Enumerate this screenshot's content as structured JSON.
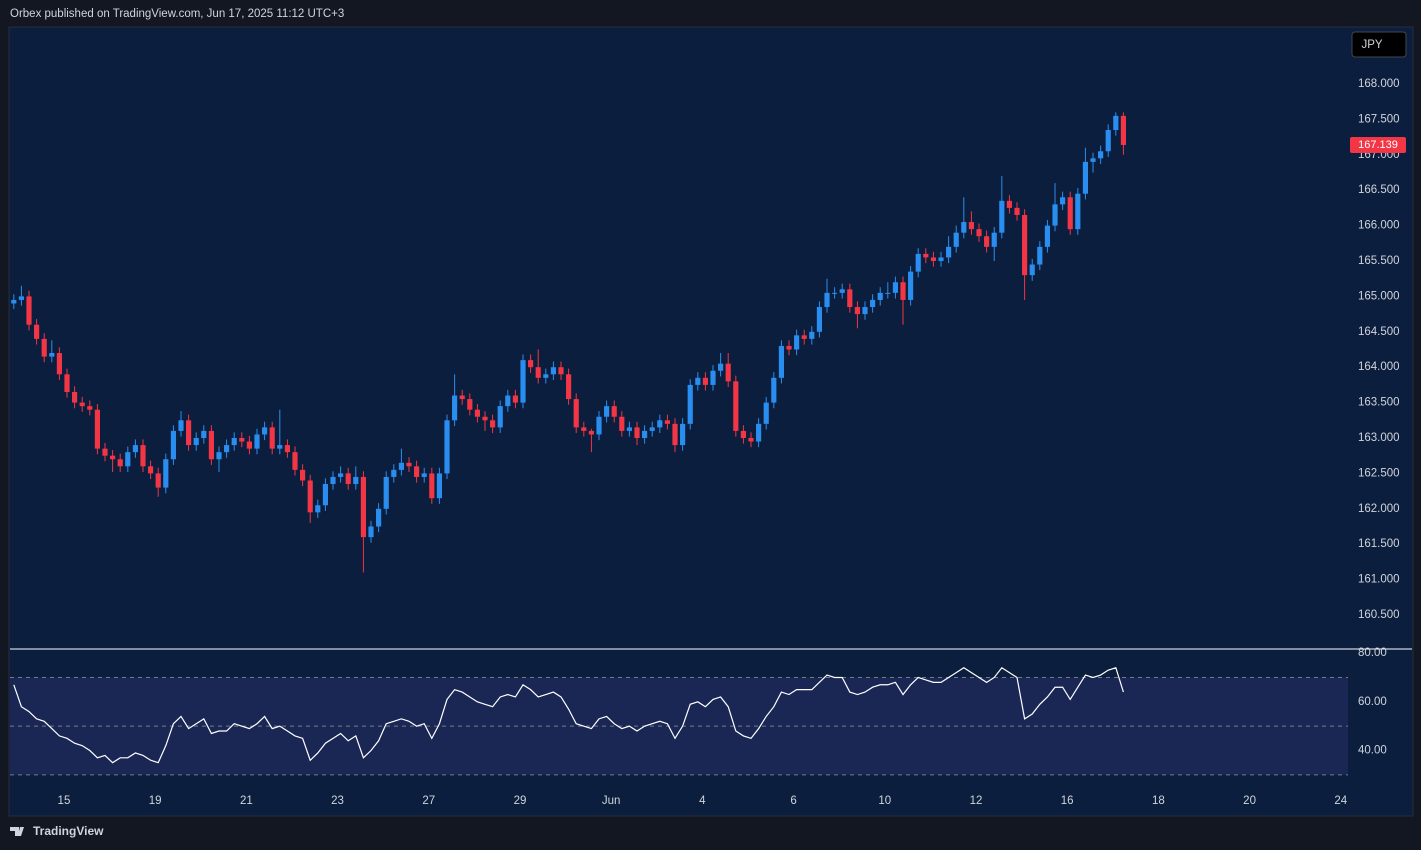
{
  "header": "Orbex published on TradingView.com, Jun 17, 2025 11:12 UTC+3",
  "brand": "TradingView",
  "chart_data": [
    {
      "type": "candlestick",
      "currency": "JPY",
      "up_color": "#2a8ef0",
      "down_color": "#f23645",
      "xlim": [
        -0.5,
        175.55
      ],
      "ylim": [
        160.034,
        168.805
      ],
      "yticks": [
        {
          "value": 160.5,
          "label": "160.500"
        },
        {
          "value": 161,
          "label": "161.000"
        },
        {
          "value": 161.5,
          "label": "161.500"
        },
        {
          "value": 162,
          "label": "162.000"
        },
        {
          "value": 162.5,
          "label": "162.500"
        },
        {
          "value": 163,
          "label": "163.000"
        },
        {
          "value": 163.5,
          "label": "163.500"
        },
        {
          "value": 164,
          "label": "164.000"
        },
        {
          "value": 164.5,
          "label": "164.500"
        },
        {
          "value": 165,
          "label": "165.000"
        },
        {
          "value": 165.5,
          "label": "165.500"
        },
        {
          "value": 166,
          "label": "166.000"
        },
        {
          "value": 166.5,
          "label": "166.500"
        },
        {
          "value": 167,
          "label": "167.000"
        },
        {
          "value": 167.5,
          "label": "167.500"
        },
        {
          "value": 168,
          "label": "168.000"
        }
      ],
      "ohlc": [
        [
          164.9,
          165.03,
          164.82,
          164.95
        ],
        [
          164.95,
          165.15,
          164.87,
          165.0
        ],
        [
          165.0,
          165.08,
          164.52,
          164.6
        ],
        [
          164.6,
          164.68,
          164.32,
          164.4
        ],
        [
          164.4,
          164.48,
          164.07,
          164.15
        ],
        [
          164.15,
          164.38,
          164.07,
          164.2
        ],
        [
          164.2,
          164.28,
          163.82,
          163.9
        ],
        [
          163.9,
          163.98,
          163.57,
          163.65
        ],
        [
          163.65,
          163.73,
          163.42,
          163.5
        ],
        [
          163.5,
          163.58,
          163.37,
          163.45
        ],
        [
          163.45,
          163.53,
          163.32,
          163.4
        ],
        [
          163.4,
          163.48,
          162.77,
          162.85
        ],
        [
          162.85,
          162.93,
          162.67,
          162.75
        ],
        [
          162.75,
          162.83,
          162.52,
          162.7
        ],
        [
          162.7,
          162.78,
          162.52,
          162.6
        ],
        [
          162.6,
          162.88,
          162.52,
          162.8
        ],
        [
          162.8,
          162.98,
          162.72,
          162.9
        ],
        [
          162.9,
          162.98,
          162.52,
          162.6
        ],
        [
          162.6,
          162.68,
          162.42,
          162.5
        ],
        [
          162.5,
          162.58,
          162.17,
          162.3
        ],
        [
          162.3,
          162.78,
          162.22,
          162.7
        ],
        [
          162.7,
          163.18,
          162.62,
          163.1
        ],
        [
          163.1,
          163.38,
          163.02,
          163.25
        ],
        [
          163.25,
          163.33,
          162.82,
          162.9
        ],
        [
          162.9,
          163.08,
          162.82,
          163.0
        ],
        [
          163.0,
          163.18,
          162.92,
          163.1
        ],
        [
          163.1,
          163.18,
          162.62,
          162.7
        ],
        [
          162.7,
          162.88,
          162.52,
          162.8
        ],
        [
          162.8,
          162.98,
          162.72,
          162.9
        ],
        [
          162.9,
          163.08,
          162.82,
          163.0
        ],
        [
          163.0,
          163.08,
          162.87,
          162.95
        ],
        [
          162.95,
          163.03,
          162.77,
          162.85
        ],
        [
          162.85,
          163.13,
          162.77,
          163.05
        ],
        [
          163.05,
          163.23,
          162.97,
          163.15
        ],
        [
          163.15,
          163.23,
          162.77,
          162.85
        ],
        [
          162.85,
          163.4,
          162.77,
          162.9
        ],
        [
          162.9,
          162.98,
          162.72,
          162.8
        ],
        [
          162.8,
          162.88,
          162.47,
          162.55
        ],
        [
          162.55,
          162.63,
          162.32,
          162.4
        ],
        [
          162.4,
          162.48,
          161.8,
          161.95
        ],
        [
          161.95,
          162.13,
          161.87,
          162.05
        ],
        [
          162.05,
          162.43,
          161.97,
          162.35
        ],
        [
          162.35,
          162.53,
          162.27,
          162.45
        ],
        [
          162.45,
          162.6,
          162.37,
          162.5
        ],
        [
          162.5,
          162.58,
          162.27,
          162.35
        ],
        [
          162.35,
          162.6,
          162.27,
          162.45
        ],
        [
          162.45,
          162.53,
          161.1,
          161.6
        ],
        [
          161.6,
          161.83,
          161.52,
          161.75
        ],
        [
          161.75,
          162.08,
          161.67,
          162.0
        ],
        [
          162.0,
          162.53,
          161.92,
          162.45
        ],
        [
          162.45,
          162.63,
          162.37,
          162.55
        ],
        [
          162.55,
          162.85,
          162.47,
          162.65
        ],
        [
          162.65,
          162.73,
          162.52,
          162.6
        ],
        [
          162.6,
          162.68,
          162.37,
          162.45
        ],
        [
          162.45,
          162.58,
          162.37,
          162.5
        ],
        [
          162.5,
          162.58,
          162.07,
          162.15
        ],
        [
          162.15,
          162.58,
          162.07,
          162.5
        ],
        [
          162.5,
          163.33,
          162.42,
          163.25
        ],
        [
          163.25,
          163.9,
          163.17,
          163.6
        ],
        [
          163.6,
          163.68,
          163.47,
          163.55
        ],
        [
          163.55,
          163.63,
          163.32,
          163.4
        ],
        [
          163.4,
          163.48,
          163.22,
          163.3
        ],
        [
          163.3,
          163.38,
          163.1,
          163.25
        ],
        [
          163.25,
          163.33,
          163.07,
          163.15
        ],
        [
          163.15,
          163.53,
          163.07,
          163.45
        ],
        [
          163.45,
          163.68,
          163.37,
          163.6
        ],
        [
          163.6,
          163.68,
          163.42,
          163.5
        ],
        [
          163.5,
          164.18,
          163.42,
          164.1
        ],
        [
          164.1,
          164.18,
          163.92,
          164.0
        ],
        [
          164.0,
          164.25,
          163.77,
          163.85
        ],
        [
          163.85,
          163.98,
          163.77,
          163.9
        ],
        [
          163.9,
          164.08,
          163.82,
          164.0
        ],
        [
          164.0,
          164.08,
          163.82,
          163.9
        ],
        [
          163.9,
          163.98,
          163.47,
          163.55
        ],
        [
          163.55,
          163.63,
          163.07,
          163.15
        ],
        [
          163.15,
          163.23,
          163.02,
          163.1
        ],
        [
          163.1,
          163.13,
          162.8,
          163.05
        ],
        [
          163.05,
          163.38,
          162.97,
          163.3
        ],
        [
          163.3,
          163.53,
          163.22,
          163.45
        ],
        [
          163.45,
          163.53,
          163.22,
          163.3
        ],
        [
          163.3,
          163.38,
          163.02,
          163.1
        ],
        [
          163.1,
          163.23,
          163.02,
          163.15
        ],
        [
          163.15,
          163.23,
          162.9,
          163.0
        ],
        [
          163.0,
          163.18,
          162.92,
          163.1
        ],
        [
          163.1,
          163.23,
          163.02,
          163.15
        ],
        [
          163.15,
          163.33,
          163.07,
          163.25
        ],
        [
          163.25,
          163.33,
          163.12,
          163.2
        ],
        [
          163.2,
          163.28,
          162.8,
          162.9
        ],
        [
          162.9,
          163.28,
          162.82,
          163.2
        ],
        [
          163.2,
          163.83,
          163.12,
          163.75
        ],
        [
          163.75,
          163.93,
          163.67,
          163.85
        ],
        [
          163.85,
          163.93,
          163.67,
          163.75
        ],
        [
          163.75,
          164.03,
          163.67,
          163.95
        ],
        [
          163.95,
          164.2,
          163.87,
          164.05
        ],
        [
          164.05,
          164.2,
          163.72,
          163.8
        ],
        [
          163.8,
          163.88,
          163.02,
          163.1
        ],
        [
          163.1,
          163.18,
          162.92,
          163.0
        ],
        [
          163.0,
          163.08,
          162.87,
          162.95
        ],
        [
          162.95,
          163.28,
          162.87,
          163.2
        ],
        [
          163.2,
          163.58,
          163.12,
          163.5
        ],
        [
          163.5,
          163.93,
          163.42,
          163.85
        ],
        [
          163.85,
          164.38,
          163.77,
          164.3
        ],
        [
          164.3,
          164.38,
          164.17,
          164.25
        ],
        [
          164.25,
          164.53,
          164.17,
          164.45
        ],
        [
          164.45,
          164.53,
          164.32,
          164.4
        ],
        [
          164.4,
          164.58,
          164.32,
          164.5
        ],
        [
          164.5,
          164.93,
          164.42,
          164.85
        ],
        [
          164.85,
          165.25,
          164.77,
          165.05
        ],
        [
          165.05,
          165.13,
          164.97,
          165.05
        ],
        [
          165.05,
          165.18,
          164.97,
          165.1
        ],
        [
          165.1,
          165.18,
          164.77,
          164.85
        ],
        [
          164.85,
          164.93,
          164.55,
          164.75
        ],
        [
          164.75,
          164.93,
          164.67,
          164.85
        ],
        [
          164.85,
          165.03,
          164.77,
          164.95
        ],
        [
          164.95,
          165.13,
          164.87,
          165.05
        ],
        [
          165.05,
          165.2,
          164.97,
          165.05
        ],
        [
          165.05,
          165.28,
          164.97,
          165.2
        ],
        [
          165.2,
          165.28,
          164.6,
          164.95
        ],
        [
          164.95,
          165.43,
          164.87,
          165.35
        ],
        [
          165.35,
          165.68,
          165.27,
          165.6
        ],
        [
          165.6,
          165.68,
          165.47,
          165.55
        ],
        [
          165.55,
          165.63,
          165.42,
          165.5
        ],
        [
          165.5,
          165.63,
          165.42,
          165.55
        ],
        [
          165.55,
          165.85,
          165.47,
          165.7
        ],
        [
          165.7,
          166.0,
          165.62,
          165.9
        ],
        [
          165.9,
          166.4,
          165.82,
          166.05
        ],
        [
          166.05,
          166.2,
          165.87,
          165.95
        ],
        [
          165.95,
          166.03,
          165.77,
          165.85
        ],
        [
          165.85,
          165.93,
          165.62,
          165.7
        ],
        [
          165.7,
          165.98,
          165.5,
          165.9
        ],
        [
          165.9,
          166.7,
          165.82,
          166.35
        ],
        [
          166.35,
          166.43,
          166.17,
          166.25
        ],
        [
          166.25,
          166.33,
          166.07,
          166.15
        ],
        [
          166.15,
          166.23,
          164.95,
          165.3
        ],
        [
          165.3,
          165.53,
          165.22,
          165.45
        ],
        [
          165.45,
          165.78,
          165.37,
          165.7
        ],
        [
          165.7,
          166.08,
          165.62,
          166.0
        ],
        [
          166.0,
          166.6,
          165.92,
          166.3
        ],
        [
          166.3,
          166.48,
          166.22,
          166.4
        ],
        [
          166.4,
          166.48,
          165.87,
          165.95
        ],
        [
          165.95,
          166.53,
          165.87,
          166.45
        ],
        [
          166.45,
          167.1,
          166.37,
          166.9
        ],
        [
          166.9,
          167.03,
          166.75,
          166.95
        ],
        [
          166.95,
          167.13,
          166.87,
          167.05
        ],
        [
          167.05,
          167.43,
          166.97,
          167.35
        ],
        [
          167.35,
          167.6,
          167.27,
          167.55
        ],
        [
          167.55,
          167.6,
          167.0,
          167.139
        ]
      ]
    },
    {
      "type": "line",
      "color": "#ffffff",
      "band_color": "#1a2755",
      "level_color": "#787b86",
      "xlim": [
        -0.5,
        175.55
      ],
      "ylim": [
        24.6,
        81.7
      ],
      "levels": [
        70,
        50,
        30
      ],
      "yticks": [
        {
          "value": 40,
          "label": "40.00"
        },
        {
          "value": 60,
          "label": "60.00"
        },
        {
          "value": 80,
          "label": "80.00"
        }
      ],
      "xticks": [
        {
          "value": 6.6,
          "label": "15"
        },
        {
          "value": 18.6,
          "label": "19"
        },
        {
          "value": 30.6,
          "label": "21"
        },
        {
          "value": 42.6,
          "label": "23"
        },
        {
          "value": 54.6,
          "label": "27"
        },
        {
          "value": 66.6,
          "label": "29"
        },
        {
          "value": 78.6,
          "label": "Jun"
        },
        {
          "value": 90.6,
          "label": "4"
        },
        {
          "value": 102.6,
          "label": "6"
        },
        {
          "value": 114.6,
          "label": "10"
        },
        {
          "value": 126.6,
          "label": "12"
        },
        {
          "value": 138.6,
          "label": "16"
        },
        {
          "value": 150.6,
          "label": "18"
        },
        {
          "value": 162.6,
          "label": "20"
        },
        {
          "value": 174.6,
          "label": "24"
        }
      ],
      "values": [
        67,
        58,
        56,
        53,
        52,
        49,
        46,
        45,
        43,
        42,
        40,
        37,
        38,
        35,
        37,
        37,
        39,
        38,
        36,
        35,
        42,
        51,
        54,
        49,
        51,
        53,
        47,
        48,
        48,
        51,
        50,
        49,
        51,
        54,
        49,
        50,
        48,
        46,
        45,
        36,
        39,
        43,
        45,
        47,
        44,
        46,
        37,
        40,
        44,
        51,
        52,
        53,
        52,
        50,
        51,
        45,
        51,
        61,
        65,
        64,
        62,
        60,
        59,
        58,
        62,
        63,
        62,
        67,
        65,
        62,
        63,
        64,
        62,
        57,
        51,
        50,
        49,
        53,
        54,
        51,
        49,
        50,
        48,
        50,
        51,
        52,
        51,
        45,
        50,
        59,
        60,
        58,
        61,
        62,
        58,
        48,
        46,
        45,
        49,
        54,
        58,
        64,
        63,
        65,
        65,
        65,
        68,
        71,
        70,
        70,
        64,
        63,
        64,
        66,
        67,
        67,
        68,
        63,
        67,
        70,
        69,
        68,
        68,
        70,
        72,
        74,
        72,
        70,
        68,
        70,
        74,
        72,
        70,
        53,
        55,
        59,
        62,
        66,
        66,
        61,
        66,
        71,
        70,
        71,
        73,
        74,
        64
      ]
    }
  ]
}
